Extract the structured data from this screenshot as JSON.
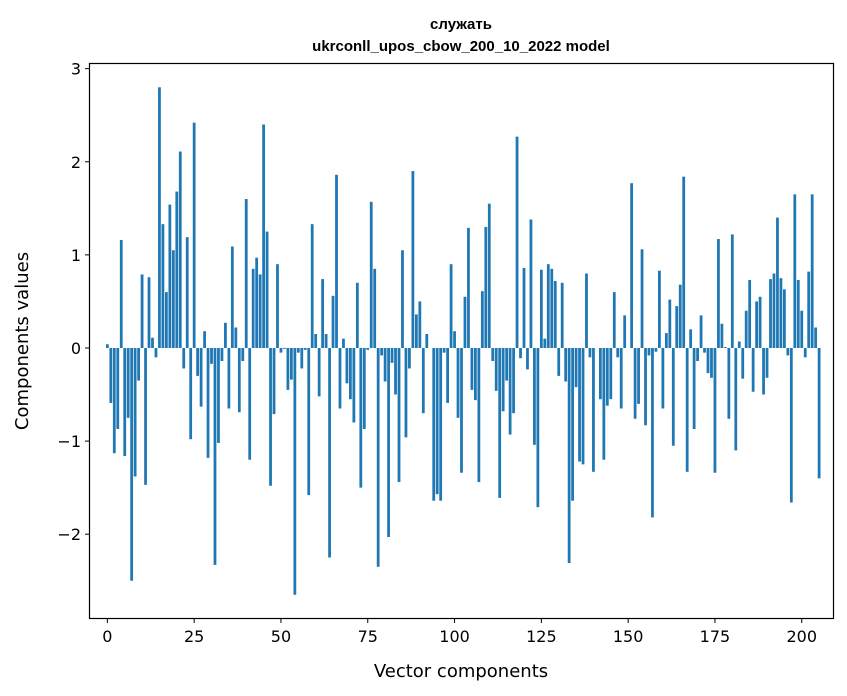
{
  "chart_data": {
    "type": "bar",
    "title": "служать",
    "subtitle": "ukrconll_upos_cbow_200_10_2022 model",
    "xlabel": "Vector components",
    "ylabel": "Components values",
    "xlim": [
      -5,
      209
    ],
    "ylim": [
      -2.9,
      3.05
    ],
    "xticks": [
      0,
      25,
      50,
      75,
      100,
      125,
      150,
      175,
      200
    ],
    "yticks": [
      -2,
      -1,
      0,
      1,
      2,
      3
    ],
    "xtick_labels": [
      "0",
      "25",
      "50",
      "75",
      "100",
      "125",
      "150",
      "175",
      "200"
    ],
    "ytick_labels": [
      "−2",
      "−1",
      "0",
      "1",
      "2",
      "3"
    ],
    "bar_color": "#1f77b4",
    "values": [
      0.04,
      -0.59,
      -1.13,
      -0.87,
      1.16,
      -1.16,
      -0.75,
      -2.5,
      -1.38,
      -0.35,
      0.79,
      -1.47,
      0.76,
      0.11,
      -0.1,
      2.8,
      1.33,
      0.6,
      1.54,
      1.05,
      1.68,
      2.11,
      -0.22,
      1.19,
      -0.98,
      2.42,
      -0.3,
      -0.63,
      0.18,
      -1.18,
      -0.17,
      -2.33,
      -1.02,
      -0.14,
      0.27,
      -0.65,
      1.09,
      0.22,
      -0.69,
      -0.14,
      1.6,
      -1.2,
      0.85,
      0.97,
      0.79,
      2.4,
      1.25,
      -1.48,
      -0.71,
      0.9,
      -0.05,
      -0.01,
      -0.45,
      -0.34,
      -2.65,
      -0.05,
      -0.22,
      -0.02,
      -1.58,
      1.33,
      0.15,
      -0.52,
      0.74,
      0.15,
      -2.25,
      0.56,
      1.86,
      -0.65,
      0.1,
      -0.38,
      -0.55,
      -0.8,
      0.7,
      -1.5,
      -0.87,
      -0.02,
      1.57,
      0.85,
      -2.35,
      -0.08,
      -0.36,
      -2.03,
      -0.16,
      -0.5,
      -1.44,
      1.05,
      -0.96,
      -0.22,
      1.9,
      0.36,
      0.5,
      -0.7,
      0.15,
      0.0,
      -1.64,
      -1.57,
      -1.64,
      -0.05,
      -0.59,
      0.9,
      0.18,
      -0.75,
      -1.34,
      0.55,
      1.29,
      -0.45,
      -0.56,
      -1.44,
      0.61,
      1.3,
      1.55,
      -0.14,
      -0.46,
      -1.61,
      -0.68,
      -0.35,
      -0.93,
      -0.7,
      2.27,
      -0.11,
      0.86,
      -0.23,
      1.38,
      -1.04,
      -1.71,
      0.84,
      0.1,
      0.9,
      0.85,
      0.72,
      -0.3,
      0.7,
      -0.36,
      -2.31,
      -1.64,
      -0.42,
      -1.22,
      -1.25,
      0.8,
      -0.1,
      -1.33,
      0.0,
      -0.55,
      -1.2,
      -0.62,
      -0.55,
      0.6,
      -0.1,
      -0.65,
      0.35,
      0.0,
      1.77,
      -0.76,
      -0.6,
      1.06,
      -0.83,
      -0.08,
      -1.82,
      -0.04,
      0.83,
      -0.65,
      0.16,
      0.52,
      -1.05,
      0.45,
      0.68,
      1.84,
      -1.33,
      0.2,
      -0.87,
      -0.14,
      0.35,
      -0.05,
      -0.27,
      -0.32,
      -1.34,
      1.17,
      0.26,
      0.01,
      -0.76,
      1.22,
      -1.1,
      0.07,
      -0.33,
      0.4,
      0.73,
      -0.47,
      0.5,
      0.55,
      -0.5,
      -0.32,
      0.74,
      0.8,
      1.4,
      0.75,
      0.63,
      -0.08,
      -1.66,
      1.65,
      0.73,
      0.4,
      -0.1,
      0.82,
      1.65,
      0.22,
      -1.4
    ]
  }
}
